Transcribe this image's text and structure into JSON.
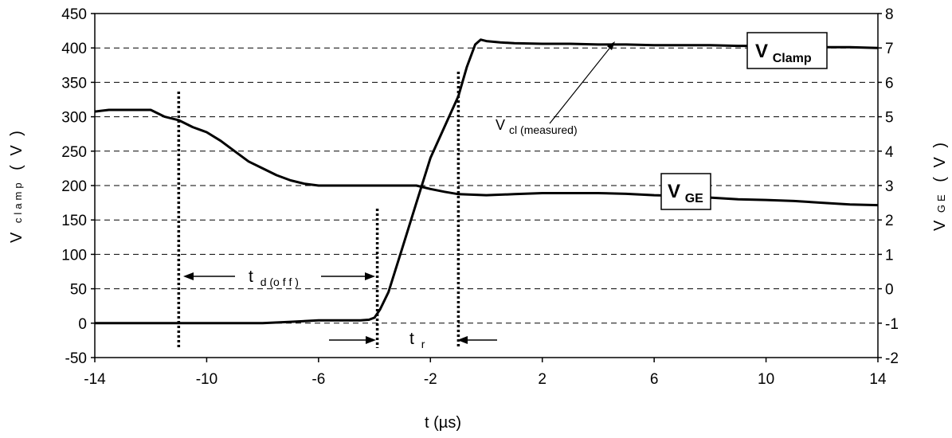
{
  "chart_data": {
    "type": "line",
    "xlabel": "t (µs)",
    "ylabel_left": {
      "main": "V",
      "sub": "clamp",
      "unit": "( V )"
    },
    "ylabel_right": {
      "main": "V",
      "sub": "GE",
      "unit": "( V )"
    },
    "xlim": [
      -14,
      14
    ],
    "ylim_left": [
      -50,
      450
    ],
    "ylim_right": [
      -2,
      8
    ],
    "x_ticks": [
      -14,
      -10,
      -6,
      -2,
      2,
      6,
      10,
      14
    ],
    "y_ticks_left": [
      -50,
      0,
      50,
      100,
      150,
      200,
      250,
      300,
      350,
      400,
      450
    ],
    "y_ticks_right": [
      -2,
      -1,
      0,
      1,
      2,
      3,
      4,
      5,
      6,
      7,
      8
    ],
    "grid": "horizontal dashed",
    "series": [
      {
        "name": "VClamp",
        "axis": "left",
        "x": [
          -14,
          -13,
          -12,
          -11,
          -10,
          -9,
          -8,
          -7,
          -6,
          -5,
          -4.5,
          -4.2,
          -4.0,
          -3.8,
          -3.5,
          -3.0,
          -2.5,
          -2.0,
          -1.5,
          -1.0,
          -0.7,
          -0.4,
          -0.2,
          0,
          0.5,
          1,
          2,
          3,
          4,
          5,
          6,
          7,
          8,
          9,
          10,
          11,
          12,
          13,
          14
        ],
        "values": [
          0,
          0,
          0,
          0,
          0,
          0,
          0,
          2,
          4,
          4,
          4,
          5,
          8,
          20,
          45,
          110,
          175,
          240,
          285,
          330,
          372,
          405,
          412,
          410,
          408,
          407,
          406,
          406,
          405,
          405,
          404,
          404,
          404,
          403,
          403,
          402,
          401,
          401,
          400
        ]
      },
      {
        "name": "VGE",
        "axis": "right",
        "x": [
          -14,
          -13.5,
          -13,
          -12.5,
          -12,
          -11.5,
          -11,
          -10.5,
          -10,
          -9.5,
          -9,
          -8.5,
          -8,
          -7.5,
          -7,
          -6.5,
          -6,
          -5,
          -4,
          -3,
          -2.5,
          -2,
          -1.5,
          -1,
          0,
          1,
          2,
          3,
          4,
          5,
          6,
          7,
          8,
          9,
          10,
          11,
          12,
          13,
          14
        ],
        "values": [
          5.15,
          5.2,
          5.2,
          5.2,
          5.2,
          5.0,
          4.9,
          4.7,
          4.55,
          4.3,
          4.0,
          3.7,
          3.5,
          3.3,
          3.15,
          3.05,
          3.0,
          3.0,
          3.0,
          3.0,
          3.0,
          2.9,
          2.82,
          2.75,
          2.72,
          2.75,
          2.78,
          2.78,
          2.78,
          2.76,
          2.72,
          2.7,
          2.65,
          2.6,
          2.58,
          2.55,
          2.5,
          2.45,
          2.43
        ]
      }
    ],
    "markers_x": [
      -11,
      -3.9,
      -1
    ],
    "annotations": {
      "td_off": {
        "main": "t",
        "sub": "d (o f f )"
      },
      "tr": {
        "main": "t",
        "sub": "r"
      },
      "vcl": {
        "main": "V",
        "sub": "cl (measured)"
      },
      "vclamp_box": {
        "main": "V",
        "sub": "Clamp"
      },
      "vge_box": {
        "main": "V",
        "sub": "GE"
      }
    }
  }
}
